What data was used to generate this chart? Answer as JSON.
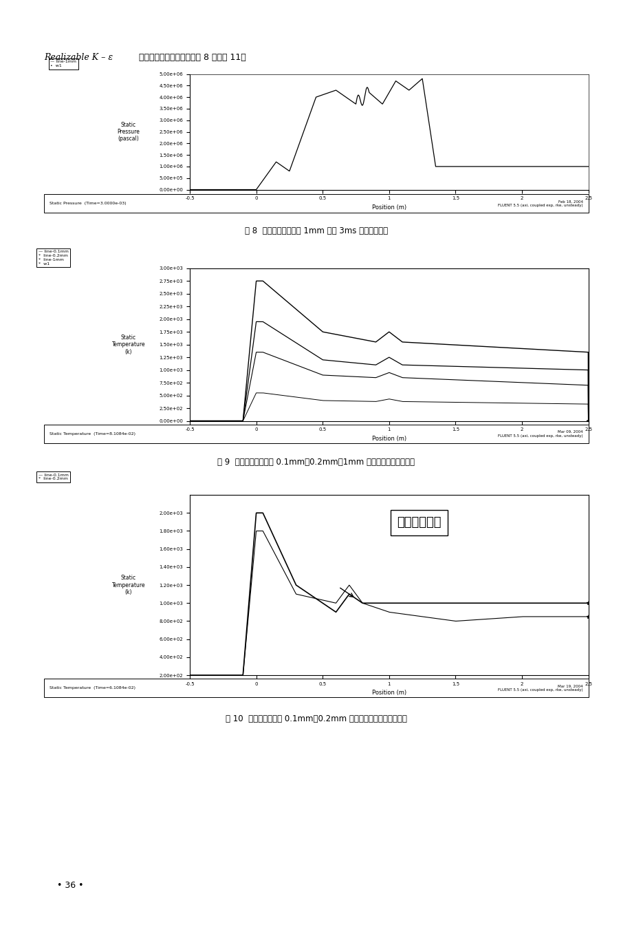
{
  "page_bg": "#ffffff",
  "header_text_italic": "Realizable K – ε",
  "header_text_normal": " 两方程模型计算结果见附图 8 至附图 11。",
  "fig8_caption": "图 8  外筒内壁及距内壁 1㎡㎡ 处在 3㎡㎡ 时压力曲线图",
  "fig8_caption_plain": "图 8  外筒内壁及距内壁 1mm 处在 3ms 时压力曲线图",
  "fig9_caption": "图 9  外筒内壁及距内壁 0.1mm，0.2mm，1mm 处在稳态时静态温度曲线",
  "fig10_caption": "图 10  测温度与距内壁 0.1mm，0.2mm 处在稳态时静态温度曲线对比",
  "page_number": "36",
  "fluent_label1_left": "Static Pressure  (Time=3.0000e-03)",
  "fluent_label1_right": "Feb 18, 2004\nFLUENT 5.5 (axi, coupled exp, rke, unsteady)",
  "fluent_label2_left": "Static Temperature  (Time=8.1084e-02)",
  "fluent_label2_right": "Mar 09, 2004\nFLUENT 5.5 (axi, coupled exp, rke, unsteady)",
  "fluent_label3_left": "Static Temperature  (Time=6.1084e-02)",
  "fluent_label3_right": "Mar 19, 2004\nFLUENT 5.5 (axi, coupled exp, rke, unsteady)",
  "annotation_text": "实测温度曲线"
}
